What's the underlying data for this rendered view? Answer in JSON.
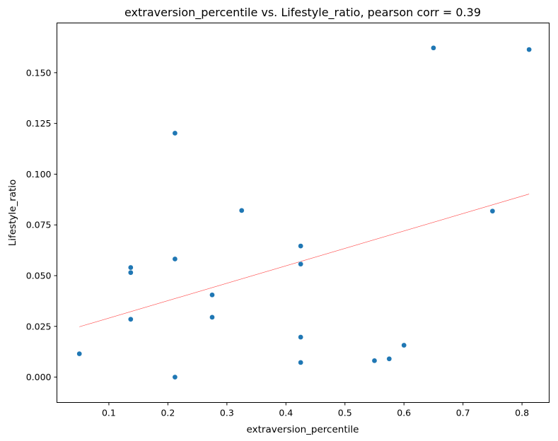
{
  "chart_data": {
    "type": "scatter",
    "title": "extraversion_percentile vs. Lifestyle_ratio, pearson corr = 0.39",
    "xlabel": "extraversion_percentile",
    "ylabel": "Lifestyle_ratio",
    "xlim": [
      0.012,
      0.846
    ],
    "ylim": [
      -0.0125,
      0.1745
    ],
    "xticks": [
      0.1,
      0.2,
      0.3,
      0.4,
      0.5,
      0.6,
      0.7,
      0.8
    ],
    "xtick_labels": [
      "0.1",
      "0.2",
      "0.3",
      "0.4",
      "0.5",
      "0.6",
      "0.7",
      "0.8"
    ],
    "yticks": [
      0.0,
      0.025,
      0.05,
      0.075,
      0.1,
      0.125,
      0.15
    ],
    "ytick_labels": [
      "0.000",
      "0.025",
      "0.050",
      "0.075",
      "0.100",
      "0.125",
      "0.150"
    ],
    "grid": false,
    "marker_color": "#1f77b4",
    "trend_color": "#ff0000",
    "points": {
      "x": [
        0.05,
        0.137,
        0.137,
        0.137,
        0.212,
        0.212,
        0.212,
        0.275,
        0.275,
        0.325,
        0.425,
        0.425,
        0.425,
        0.425,
        0.55,
        0.575,
        0.6,
        0.65,
        0.75,
        0.812
      ],
      "y": [
        0.0115,
        0.0285,
        0.0515,
        0.054,
        0.0,
        0.0582,
        0.1202,
        0.0295,
        0.0405,
        0.0821,
        0.0072,
        0.0197,
        0.0557,
        0.0646,
        0.0081,
        0.009,
        0.0157,
        0.1622,
        0.0818,
        0.1614
      ]
    },
    "trend_line": {
      "x": [
        0.05,
        0.812
      ],
      "y": [
        0.0248,
        0.0902
      ]
    }
  }
}
